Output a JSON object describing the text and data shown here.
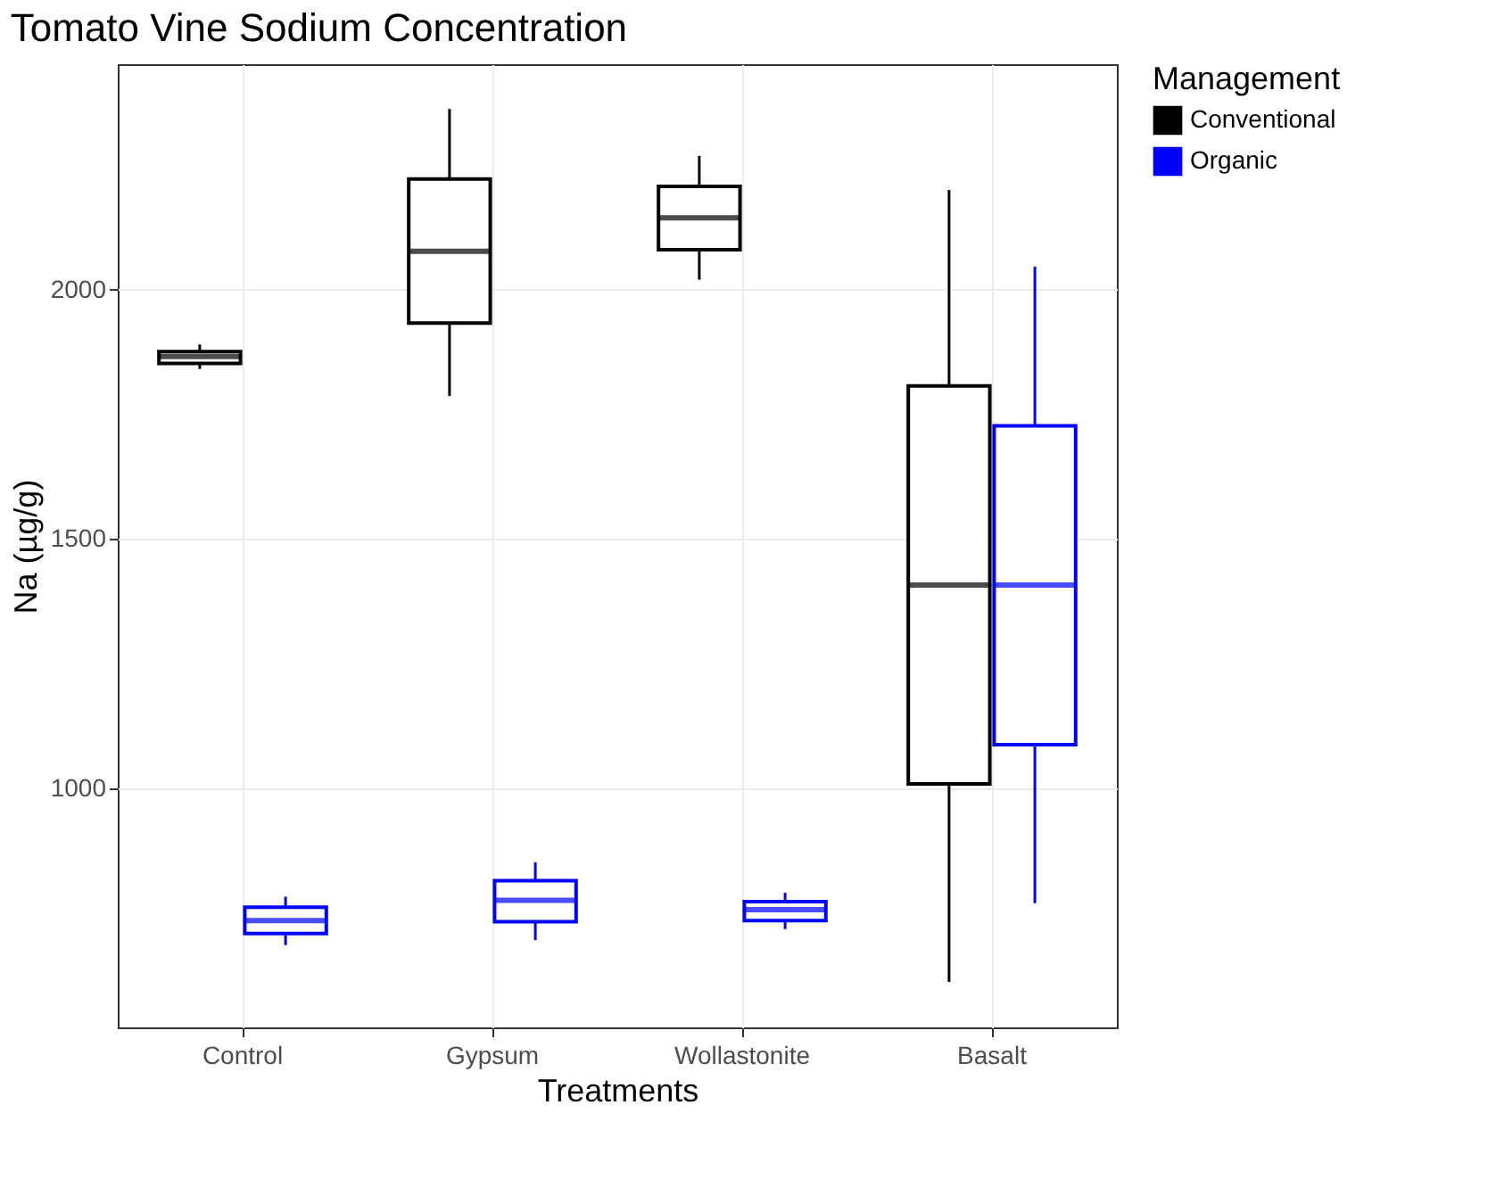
{
  "chart_data": {
    "type": "box",
    "title": "Tomato Vine Sodium Concentration",
    "xlabel": "Treatments",
    "ylabel": "Na (µg/g)",
    "legend_title": "Management",
    "categories": [
      "Control",
      "Gypsum",
      "Wollastonite",
      "Basalt"
    ],
    "series": [
      {
        "name": "Conventional",
        "color": "#000000",
        "boxes": [
          {
            "low": 1841,
            "q1": 1852,
            "median": 1866,
            "q3": 1876,
            "high": 1890
          },
          {
            "low": 1787,
            "q1": 1933,
            "median": 2077,
            "q3": 2222,
            "high": 2362
          },
          {
            "low": 2020,
            "q1": 2080,
            "median": 2144,
            "q3": 2207,
            "high": 2268
          },
          {
            "low": 612,
            "q1": 1009,
            "median": 1408,
            "q3": 1807,
            "high": 2200
          }
        ]
      },
      {
        "name": "Organic",
        "color": "#0000ff",
        "boxes": [
          {
            "low": 686,
            "q1": 709,
            "median": 735,
            "q3": 762,
            "high": 783
          },
          {
            "low": 696,
            "q1": 733,
            "median": 776,
            "q3": 815,
            "high": 852
          },
          {
            "low": 718,
            "q1": 735,
            "median": 757,
            "q3": 773,
            "high": 791
          },
          {
            "low": 770,
            "q1": 1088,
            "median": 1408,
            "q3": 1727,
            "high": 2046
          }
        ]
      }
    ],
    "ylim": [
      521,
      2452
    ],
    "yticks": [
      1000,
      1500,
      2000
    ],
    "grid": true,
    "legend": "right"
  }
}
